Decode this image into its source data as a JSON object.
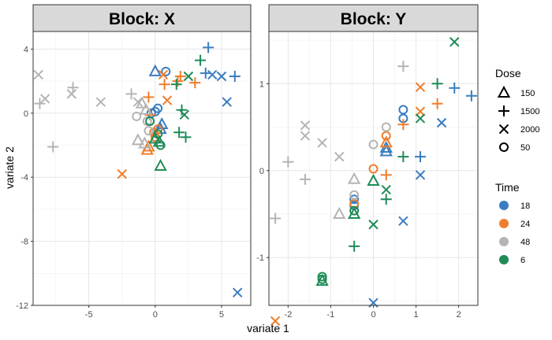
{
  "chart_data": {
    "type": "scatter",
    "xlabel": "variate 1",
    "ylabel": "variate 2",
    "colors": {
      "18": "#3a7dc0",
      "24": "#f07d2c",
      "48": "#b4b4b4",
      "6": "#1f8b57"
    },
    "legends": {
      "shape": {
        "title": "Dose",
        "entries": [
          {
            "label": "150",
            "shape": "triangle"
          },
          {
            "label": "1500",
            "shape": "plus"
          },
          {
            "label": "2000",
            "shape": "cross"
          },
          {
            "label": "50",
            "shape": "circle"
          }
        ]
      },
      "color": {
        "title": "Time",
        "entries": [
          "18",
          "24",
          "48",
          "6"
        ]
      }
    },
    "panels": [
      {
        "title": "Block: X",
        "xlim": [
          -9.2,
          7.2
        ],
        "ylim": [
          -12,
          5.1
        ],
        "xticks": [
          -5,
          0,
          5
        ],
        "xtick_labels": [
          "-5",
          "0",
          "5"
        ],
        "yticks": [
          -12,
          -8,
          -4,
          0,
          4
        ],
        "ytick_labels": [
          "-12",
          "-8",
          "-4",
          "0",
          "4"
        ],
        "points": [
          {
            "x": 4.0,
            "y": 4.1,
            "shape": "plus",
            "time": "18"
          },
          {
            "x": 6.0,
            "y": 2.3,
            "shape": "plus",
            "time": "18"
          },
          {
            "x": 3.8,
            "y": 2.5,
            "shape": "plus",
            "time": "18"
          },
          {
            "x": 4.3,
            "y": 2.4,
            "shape": "cross",
            "time": "18"
          },
          {
            "x": 5.0,
            "y": 2.3,
            "shape": "cross",
            "time": "18"
          },
          {
            "x": 5.4,
            "y": 0.7,
            "shape": "cross",
            "time": "18"
          },
          {
            "x": 6.2,
            "y": -11.2,
            "shape": "cross",
            "time": "18"
          },
          {
            "x": 0.0,
            "y": 2.6,
            "shape": "triangle",
            "time": "18"
          },
          {
            "x": 0.8,
            "y": 2.6,
            "shape": "circle",
            "time": "18"
          },
          {
            "x": 0.2,
            "y": 0.3,
            "shape": "circle",
            "time": "18"
          },
          {
            "x": 0.0,
            "y": 0.1,
            "shape": "circle",
            "time": "18"
          },
          {
            "x": -0.3,
            "y": 0.0,
            "shape": "circle",
            "time": "18"
          },
          {
            "x": 0.5,
            "y": -0.7,
            "shape": "triangle",
            "time": "18"
          },
          {
            "x": 0.4,
            "y": -1.0,
            "shape": "triangle",
            "time": "18"
          },
          {
            "x": 0.6,
            "y": 2.4,
            "shape": "cross",
            "time": "24"
          },
          {
            "x": 1.9,
            "y": 2.3,
            "shape": "plus",
            "time": "24"
          },
          {
            "x": 3.0,
            "y": 1.9,
            "shape": "plus",
            "time": "24"
          },
          {
            "x": 1.7,
            "y": 2.0,
            "shape": "plus",
            "time": "24"
          },
          {
            "x": 0.7,
            "y": 1.8,
            "shape": "plus",
            "time": "24"
          },
          {
            "x": 0.9,
            "y": 0.8,
            "shape": "cross",
            "time": "24"
          },
          {
            "x": -0.5,
            "y": 1.0,
            "shape": "plus",
            "time": "24"
          },
          {
            "x": -0.4,
            "y": -0.1,
            "shape": "plus",
            "time": "24"
          },
          {
            "x": 0.2,
            "y": -1.0,
            "shape": "circle",
            "time": "24"
          },
          {
            "x": -0.1,
            "y": -1.2,
            "shape": "circle",
            "time": "24"
          },
          {
            "x": 0.0,
            "y": -1.5,
            "shape": "circle",
            "time": "24"
          },
          {
            "x": -0.5,
            "y": -2.1,
            "shape": "triangle",
            "time": "24"
          },
          {
            "x": -0.6,
            "y": -2.3,
            "shape": "triangle",
            "time": "24"
          },
          {
            "x": -2.5,
            "y": -3.8,
            "shape": "cross",
            "time": "24"
          },
          {
            "x": -8.8,
            "y": 2.4,
            "shape": "cross",
            "time": "48"
          },
          {
            "x": -8.7,
            "y": 0.6,
            "shape": "plus",
            "time": "48"
          },
          {
            "x": -8.3,
            "y": 0.9,
            "shape": "cross",
            "time": "48"
          },
          {
            "x": -6.2,
            "y": 1.6,
            "shape": "plus",
            "time": "48"
          },
          {
            "x": -6.3,
            "y": 1.2,
            "shape": "cross",
            "time": "48"
          },
          {
            "x": -7.7,
            "y": -2.1,
            "shape": "plus",
            "time": "48"
          },
          {
            "x": -4.1,
            "y": 0.7,
            "shape": "cross",
            "time": "48"
          },
          {
            "x": -1.8,
            "y": 1.2,
            "shape": "plus",
            "time": "48"
          },
          {
            "x": -1.3,
            "y": 0.7,
            "shape": "cross",
            "time": "48"
          },
          {
            "x": -1.0,
            "y": 0.6,
            "shape": "triangle",
            "time": "48"
          },
          {
            "x": -0.7,
            "y": 0.2,
            "shape": "triangle",
            "time": "48"
          },
          {
            "x": -1.4,
            "y": -0.2,
            "shape": "circle",
            "time": "48"
          },
          {
            "x": -0.6,
            "y": -0.5,
            "shape": "circle",
            "time": "48"
          },
          {
            "x": -0.5,
            "y": -1.1,
            "shape": "circle",
            "time": "48"
          },
          {
            "x": -1.3,
            "y": -1.7,
            "shape": "triangle",
            "time": "48"
          },
          {
            "x": -0.8,
            "y": -1.9,
            "shape": "triangle",
            "time": "48"
          },
          {
            "x": 3.4,
            "y": 3.3,
            "shape": "plus",
            "time": "6"
          },
          {
            "x": 2.5,
            "y": 2.3,
            "shape": "cross",
            "time": "6"
          },
          {
            "x": 1.6,
            "y": 1.8,
            "shape": "plus",
            "time": "6"
          },
          {
            "x": 2.0,
            "y": 0.2,
            "shape": "plus",
            "time": "6"
          },
          {
            "x": 2.2,
            "y": -0.1,
            "shape": "cross",
            "time": "6"
          },
          {
            "x": -0.4,
            "y": -0.5,
            "shape": "circle",
            "time": "6"
          },
          {
            "x": 0.2,
            "y": -1.3,
            "shape": "circle",
            "time": "6"
          },
          {
            "x": 0.0,
            "y": -1.6,
            "shape": "triangle",
            "time": "6"
          },
          {
            "x": 0.3,
            "y": -1.8,
            "shape": "triangle",
            "time": "6"
          },
          {
            "x": 0.4,
            "y": -2.0,
            "shape": "circle",
            "time": "6"
          },
          {
            "x": 1.8,
            "y": -1.2,
            "shape": "plus",
            "time": "6"
          },
          {
            "x": 2.3,
            "y": -1.5,
            "shape": "plus",
            "time": "6"
          },
          {
            "x": 0.4,
            "y": -3.3,
            "shape": "triangle",
            "time": "6"
          }
        ]
      },
      {
        "title": "Block: Y",
        "xlim": [
          -2.45,
          2.45
        ],
        "ylim": [
          -1.55,
          1.6
        ],
        "xticks": [
          -2,
          -1,
          0,
          1,
          2
        ],
        "xtick_labels": [
          "-2",
          "-1",
          "0",
          "1",
          "2"
        ],
        "yticks": [
          -1,
          0,
          1
        ],
        "ytick_labels": [
          "-1",
          "0",
          "1"
        ],
        "points": [
          {
            "x": 1.9,
            "y": 0.95,
            "shape": "plus",
            "time": "18"
          },
          {
            "x": 2.3,
            "y": 0.86,
            "shape": "plus",
            "time": "18"
          },
          {
            "x": 1.1,
            "y": 0.16,
            "shape": "plus",
            "time": "18"
          },
          {
            "x": 1.1,
            "y": -0.05,
            "shape": "cross",
            "time": "18"
          },
          {
            "x": 1.6,
            "y": 0.55,
            "shape": "cross",
            "time": "18"
          },
          {
            "x": 0.7,
            "y": 0.7,
            "shape": "circle",
            "time": "18"
          },
          {
            "x": 0.7,
            "y": 0.6,
            "shape": "circle",
            "time": "18"
          },
          {
            "x": 0.3,
            "y": 0.26,
            "shape": "triangle",
            "time": "18"
          },
          {
            "x": 0.3,
            "y": 0.22,
            "shape": "triangle",
            "time": "18"
          },
          {
            "x": -0.45,
            "y": -0.33,
            "shape": "circle",
            "time": "18"
          },
          {
            "x": -0.45,
            "y": -0.4,
            "shape": "circle",
            "time": "18"
          },
          {
            "x": 0.7,
            "y": -0.58,
            "shape": "cross",
            "time": "18"
          },
          {
            "x": 0.0,
            "y": -1.52,
            "shape": "cross",
            "time": "18"
          },
          {
            "x": 1.1,
            "y": 0.96,
            "shape": "cross",
            "time": "24"
          },
          {
            "x": 1.5,
            "y": 0.77,
            "shape": "plus",
            "time": "24"
          },
          {
            "x": 1.1,
            "y": 0.68,
            "shape": "cross",
            "time": "24"
          },
          {
            "x": 0.7,
            "y": 0.53,
            "shape": "plus",
            "time": "24"
          },
          {
            "x": 0.3,
            "y": 0.4,
            "shape": "circle",
            "time": "24"
          },
          {
            "x": 0.3,
            "y": 0.32,
            "shape": "triangle",
            "time": "24"
          },
          {
            "x": 0.0,
            "y": 0.02,
            "shape": "circle",
            "time": "24"
          },
          {
            "x": 0.3,
            "y": -0.05,
            "shape": "plus",
            "time": "24"
          },
          {
            "x": -0.45,
            "y": -0.38,
            "shape": "circle",
            "time": "24"
          },
          {
            "x": -2.3,
            "y": -1.73,
            "shape": "cross",
            "time": "24"
          },
          {
            "x": 0.7,
            "y": 1.2,
            "shape": "plus",
            "time": "48"
          },
          {
            "x": -1.6,
            "y": 0.52,
            "shape": "cross",
            "time": "48"
          },
          {
            "x": -1.6,
            "y": 0.4,
            "shape": "cross",
            "time": "48"
          },
          {
            "x": -1.2,
            "y": 0.32,
            "shape": "cross",
            "time": "48"
          },
          {
            "x": -0.8,
            "y": 0.16,
            "shape": "cross",
            "time": "48"
          },
          {
            "x": -2.0,
            "y": 0.1,
            "shape": "plus",
            "time": "48"
          },
          {
            "x": -1.6,
            "y": -0.1,
            "shape": "plus",
            "time": "48"
          },
          {
            "x": -2.3,
            "y": -0.55,
            "shape": "plus",
            "time": "48"
          },
          {
            "x": 0.3,
            "y": 0.5,
            "shape": "circle",
            "time": "48"
          },
          {
            "x": 0.0,
            "y": 0.3,
            "shape": "circle",
            "time": "48"
          },
          {
            "x": -0.45,
            "y": -0.1,
            "shape": "triangle",
            "time": "48"
          },
          {
            "x": -0.45,
            "y": -0.28,
            "shape": "circle",
            "time": "48"
          },
          {
            "x": -0.8,
            "y": -0.5,
            "shape": "triangle",
            "time": "48"
          },
          {
            "x": 1.9,
            "y": 1.48,
            "shape": "cross",
            "time": "6"
          },
          {
            "x": 1.5,
            "y": 1.0,
            "shape": "plus",
            "time": "6"
          },
          {
            "x": 1.1,
            "y": 0.6,
            "shape": "cross",
            "time": "6"
          },
          {
            "x": 0.7,
            "y": 0.16,
            "shape": "plus",
            "time": "6"
          },
          {
            "x": 0.3,
            "y": -0.22,
            "shape": "cross",
            "time": "6"
          },
          {
            "x": 0.3,
            "y": -0.33,
            "shape": "plus",
            "time": "6"
          },
          {
            "x": 0.0,
            "y": -0.12,
            "shape": "triangle",
            "time": "6"
          },
          {
            "x": -0.45,
            "y": -0.46,
            "shape": "circle",
            "time": "6"
          },
          {
            "x": -0.45,
            "y": -0.5,
            "shape": "triangle",
            "time": "6"
          },
          {
            "x": 0.0,
            "y": -0.62,
            "shape": "cross",
            "time": "6"
          },
          {
            "x": -0.45,
            "y": -0.87,
            "shape": "plus",
            "time": "6"
          },
          {
            "x": -1.2,
            "y": -1.22,
            "shape": "circle",
            "time": "6"
          },
          {
            "x": -1.2,
            "y": -1.25,
            "shape": "circle",
            "time": "6"
          },
          {
            "x": -1.2,
            "y": -1.27,
            "shape": "triangle",
            "time": "6"
          }
        ]
      }
    ]
  }
}
